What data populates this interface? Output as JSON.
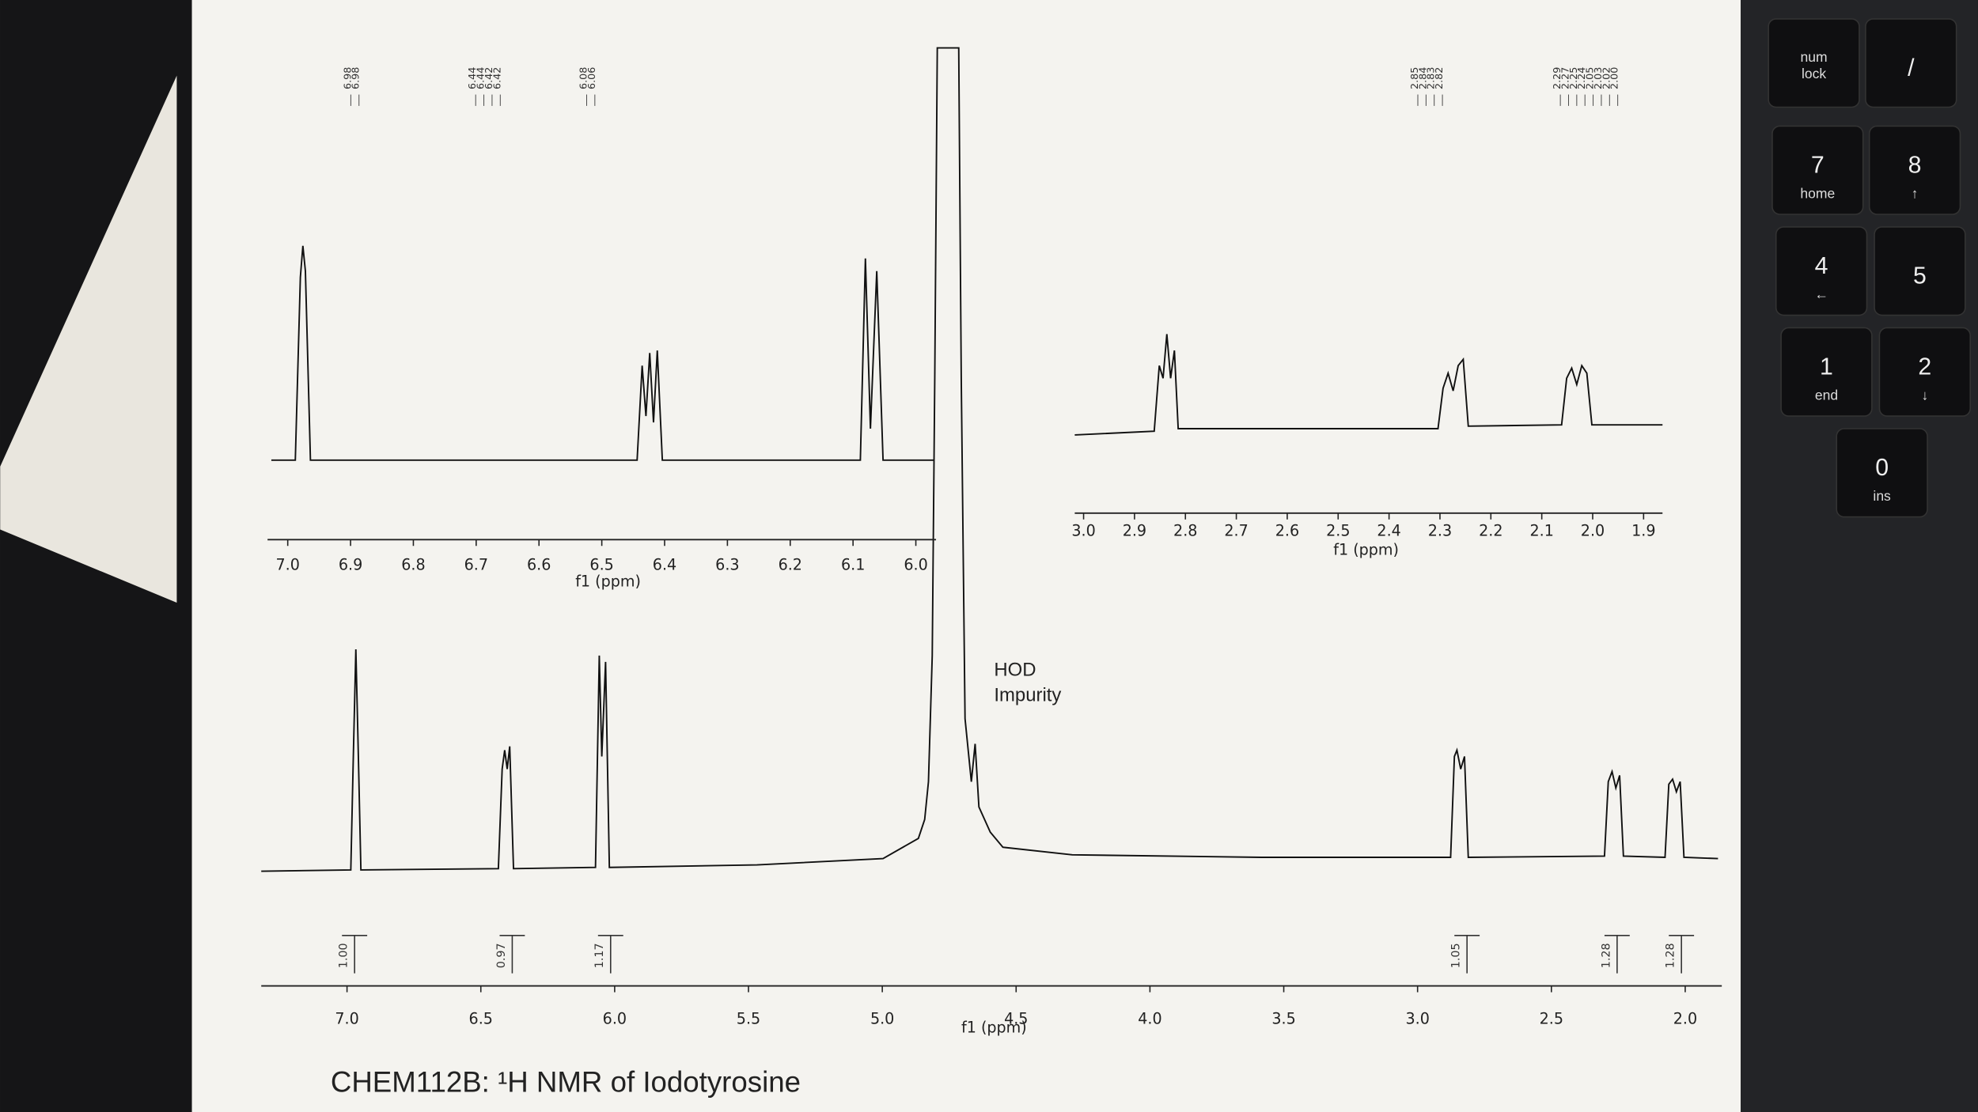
{
  "main_spectrum": {
    "ticks": [
      "7.0",
      "6.5",
      "6.0",
      "5.5",
      "5.0",
      "4.5",
      "4.0",
      "3.5",
      "3.0",
      "2.5",
      "2.0"
    ],
    "axis_label": "f1 (ppm)"
  },
  "inset_left": {
    "ticks": [
      "7.0",
      "6.9",
      "6.8",
      "6.7",
      "6.6",
      "6.5",
      "6.4",
      "6.3",
      "6.2",
      "6.1",
      "6.0"
    ],
    "axis_label": "f1 (ppm)"
  },
  "inset_right": {
    "ticks": [
      "3.0",
      "2.9",
      "2.8",
      "2.7",
      "2.6",
      "2.5",
      "2.4",
      "2.3",
      "2.2",
      "2.1",
      "2.0",
      "1.9"
    ],
    "axis_label": "f1 (ppm)"
  },
  "peak_labels": [
    [
      "6.98",
      "6.98"
    ],
    [
      "6.44",
      "6.44",
      "6.42",
      "6.42"
    ],
    [
      "6.08",
      "6.06"
    ],
    [
      "2.85",
      "2.84",
      "2.83",
      "2.82"
    ],
    [
      "2.29",
      "2.27",
      "2.25",
      "2.24",
      "2.05",
      "2.03",
      "2.02",
      "2.00"
    ]
  ],
  "integrals": [
    "1.00",
    "0.97",
    "1.17",
    "1.05",
    "1.28",
    "1.28"
  ],
  "annotation": [
    "HOD",
    "Impurity"
  ],
  "title": "CHEM112B: ¹H NMR of Iodotyrosine",
  "keypad": [
    [
      "num",
      "lock"
    ],
    [
      "/"
    ],
    [
      "7",
      "home"
    ],
    [
      "8",
      "↑"
    ],
    [
      "4",
      "←"
    ],
    [
      "5"
    ],
    [
      "1",
      "end"
    ],
    [
      "2",
      "↓"
    ],
    [
      "0",
      "ins"
    ]
  ]
}
